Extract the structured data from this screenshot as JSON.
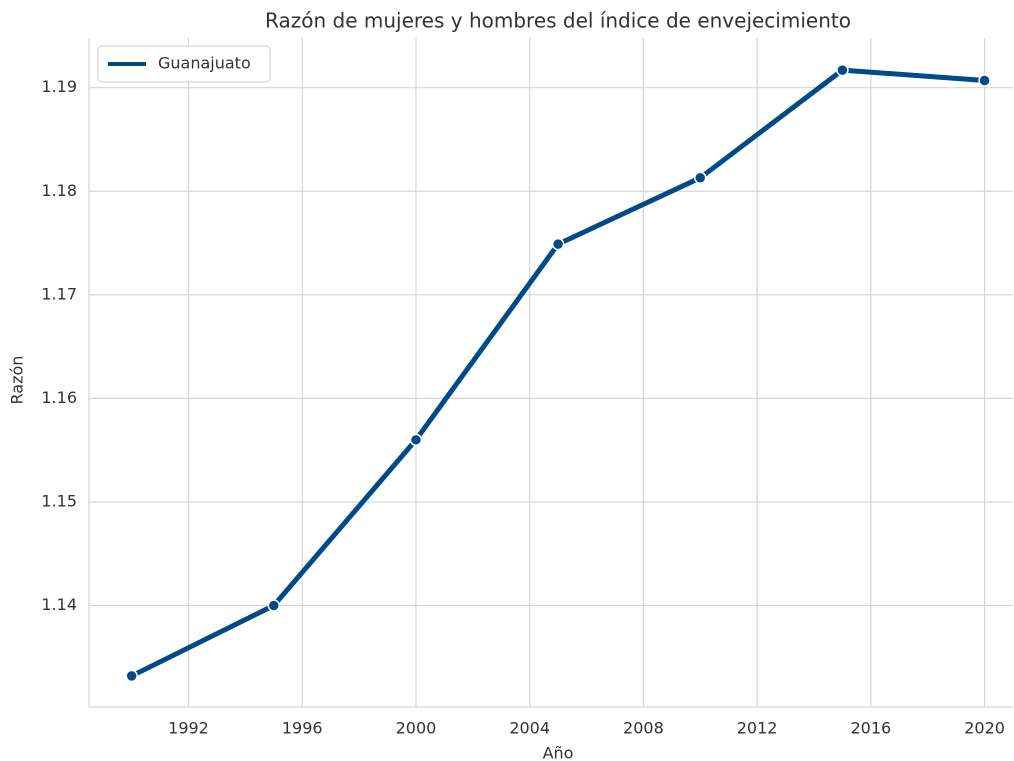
{
  "chart_data": {
    "type": "line",
    "title": "Razón de mujeres y hombres del índice de envejecimiento",
    "x_label": "Año",
    "y_label": "Razón",
    "x": [
      1990,
      1995,
      2000,
      2005,
      2010,
      2015,
      2020
    ],
    "series": [
      {
        "name": "Guanajuato",
        "color": "#004a87",
        "values": [
          1.1332,
          1.14,
          1.156,
          1.1749,
          1.1813,
          1.1917,
          1.1907
        ]
      }
    ],
    "xlim": [
      1988.5,
      2021
    ],
    "xticks": [
      1992,
      1996,
      2000,
      2004,
      2008,
      2012,
      2016,
      2020
    ],
    "ylim": [
      1.1302,
      1.1948
    ],
    "yticks": [
      1.14,
      1.15,
      1.16,
      1.17,
      1.18,
      1.19
    ],
    "grid": true,
    "legend": "upper-left"
  }
}
